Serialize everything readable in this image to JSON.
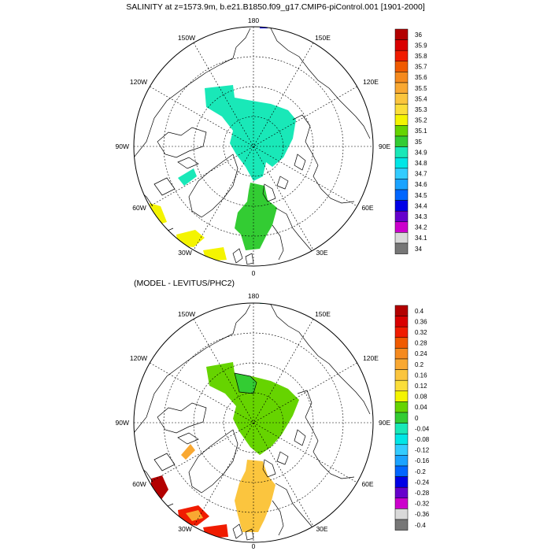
{
  "figure": {
    "top_panel": {
      "title": "SALINITY at z=1573.9m, b.e21.B1850.f09_g17.CMIP6-piControl.001 [1901-2000]",
      "longitude_labels": {
        "top": "180",
        "bottom": "0",
        "left": "90W",
        "right": "90E",
        "upper_left_1": "150W",
        "upper_right_1": "150E",
        "upper_left_2": "120W",
        "upper_right_2": "120E",
        "lower_left_1": "60W",
        "lower_right_1": "60E",
        "lower_left_2": "30W",
        "lower_right_2": "30E"
      },
      "colorbar": {
        "labels": [
          "36",
          "35.9",
          "35.8",
          "35.7",
          "35.6",
          "35.5",
          "35.4",
          "35.3",
          "35.2",
          "35.1",
          "35",
          "34.9",
          "34.8",
          "34.7",
          "34.6",
          "34.5",
          "34.4",
          "34.3",
          "34.2",
          "34.1",
          "34"
        ],
        "colors": [
          "#b30000",
          "#d90000",
          "#f01c00",
          "#f05a00",
          "#f58a1e",
          "#f9a832",
          "#fbc53e",
          "#fbde3a",
          "#f4f400",
          "#66d400",
          "#33cc33",
          "#19e8b8",
          "#00e6e6",
          "#33ccff",
          "#1aa3ff",
          "#0066ff",
          "#0000e6",
          "#6600cc",
          "#cc00cc",
          "#d9d9d9",
          "#777777"
        ]
      }
    },
    "bottom_panel": {
      "title": "(MODEL - LEVITUS/PHC2)",
      "longitude_labels": {
        "top": "180",
        "bottom": "0",
        "left": "90W",
        "right": "90E",
        "upper_left_1": "150W",
        "upper_right_1": "150E",
        "upper_left_2": "120W",
        "upper_right_2": "120E",
        "lower_left_1": "60W",
        "lower_right_1": "60E",
        "lower_left_2": "30W",
        "lower_right_2": "30E"
      },
      "colorbar": {
        "labels": [
          "0.4",
          "0.36",
          "0.32",
          "0.28",
          "0.24",
          "0.2",
          "0.16",
          "0.12",
          "0.08",
          "0.04",
          "0",
          "-0.04",
          "-0.08",
          "-0.12",
          "-0.16",
          "-0.2",
          "-0.24",
          "-0.28",
          "-0.32",
          "-0.36",
          "-0.4"
        ],
        "colors": [
          "#b30000",
          "#d90000",
          "#f01c00",
          "#f05a00",
          "#f58a1e",
          "#f9a832",
          "#fbc53e",
          "#fbde3a",
          "#f4f400",
          "#66d400",
          "#33cc33",
          "#19e8b8",
          "#00e6e6",
          "#33ccff",
          "#1aa3ff",
          "#0066ff",
          "#0000e6",
          "#6600cc",
          "#cc00cc",
          "#d9d9d9",
          "#777777"
        ]
      }
    }
  }
}
